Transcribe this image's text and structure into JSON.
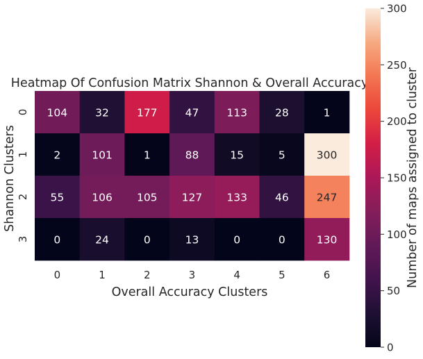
{
  "chart_data": {
    "type": "heatmap",
    "title": "Heatmap Of Confusion Matrix Shannon & Overall Accuracy",
    "xlabel": "Overall Accuracy Clusters",
    "ylabel": "Shannon Clusters",
    "x_categories": [
      "0",
      "1",
      "2",
      "3",
      "4",
      "5",
      "6"
    ],
    "y_categories": [
      "0",
      "1",
      "2",
      "3"
    ],
    "values": [
      [
        104,
        32,
        177,
        47,
        113,
        28,
        1
      ],
      [
        2,
        101,
        1,
        88,
        15,
        5,
        300
      ],
      [
        55,
        106,
        105,
        127,
        133,
        46,
        247
      ],
      [
        0,
        24,
        0,
        13,
        0,
        0,
        130
      ]
    ],
    "colorbar": {
      "label": "Number of maps assigned to cluster",
      "range": [
        0,
        300
      ],
      "ticks": [
        "0",
        "50",
        "100",
        "150",
        "200",
        "250",
        "300"
      ],
      "colormap": "rocket"
    },
    "grid": false,
    "legend": "colorbar-right"
  }
}
